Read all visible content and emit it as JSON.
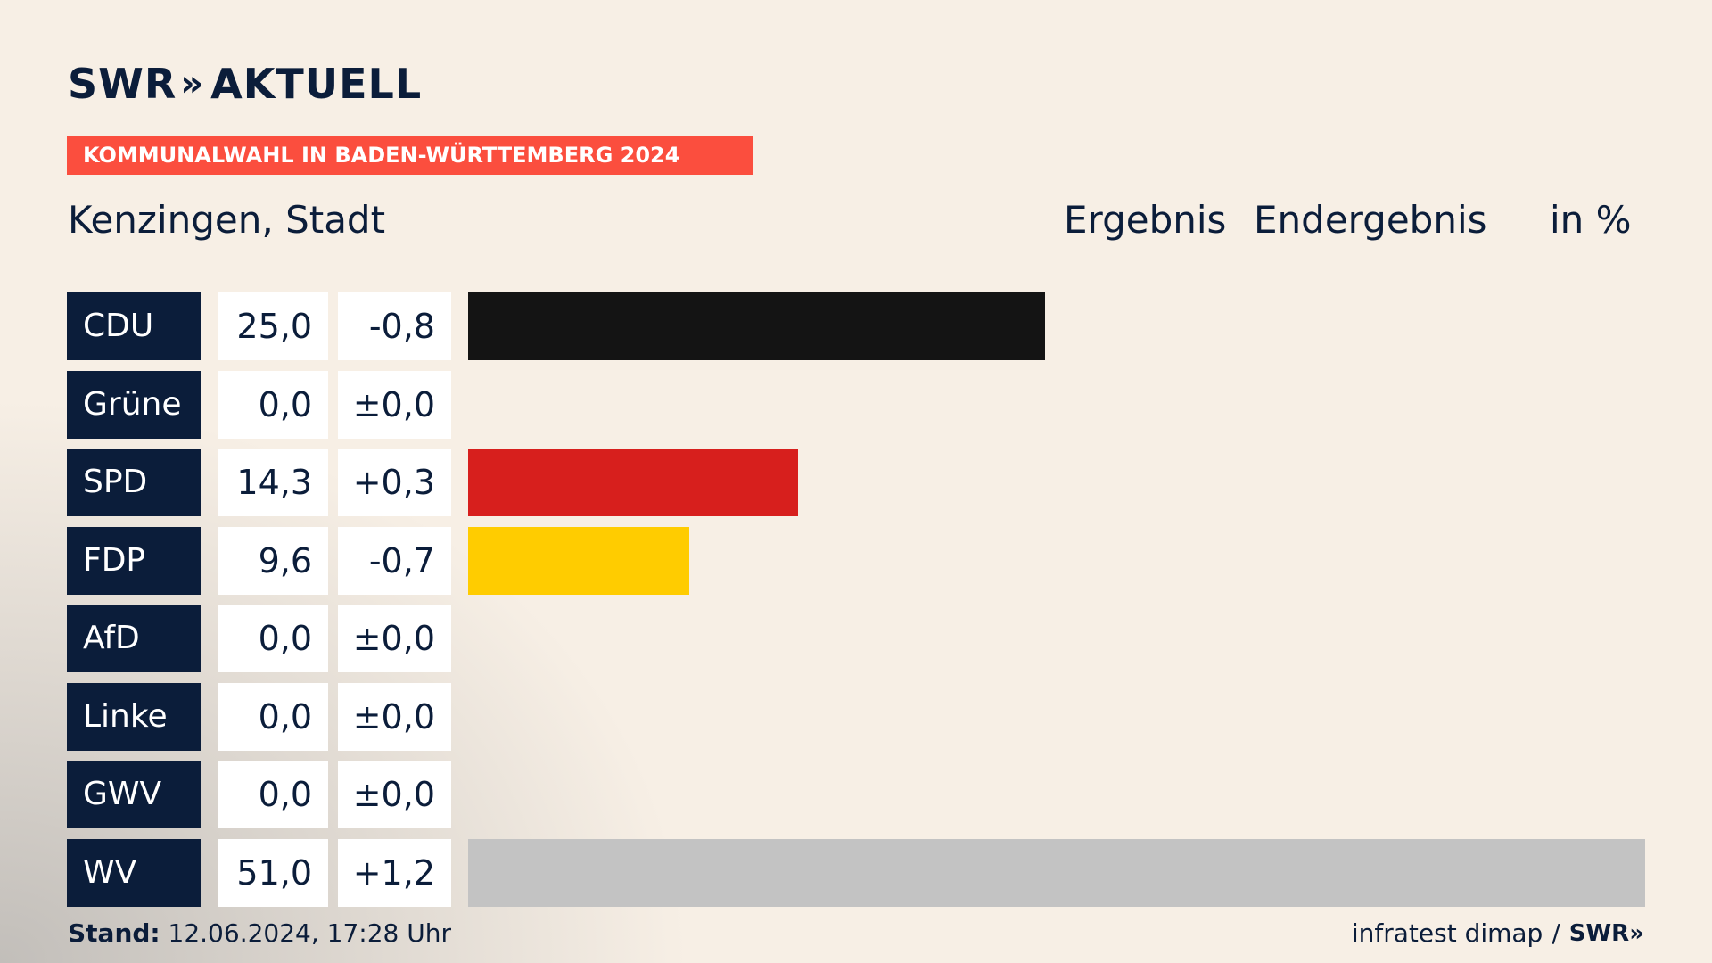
{
  "logo": {
    "text": "SWR",
    "chevron": "»",
    "suffix": "AKTUELL"
  },
  "banner": "KOMMUNALWAHL IN BADEN-WÜRTTEMBERG 2024",
  "region": "Kenzingen, Stadt",
  "headers": {
    "result": "Ergebnis",
    "final": "Endergebnis",
    "unit": "in %"
  },
  "chart_data": {
    "type": "bar",
    "orientation": "horizontal",
    "categories": [
      "CDU",
      "Grüne",
      "SPD",
      "FDP",
      "AfD",
      "Linke",
      "GWV",
      "WV"
    ],
    "values": [
      25.0,
      0.0,
      14.3,
      9.6,
      0.0,
      0.0,
      0.0,
      51.0
    ],
    "value_labels": [
      "25,0",
      "0,0",
      "14,3",
      "9,6",
      "0,0",
      "0,0",
      "0,0",
      "51,0"
    ],
    "diff_labels": [
      "-0,8",
      "±0,0",
      "+0,3",
      "-0,7",
      "±0,0",
      "±0,0",
      "±0,0",
      "+1,2"
    ],
    "colors": [
      "#141414",
      "#1fa12e",
      "#d71f1d",
      "#ffcc00",
      "#009ee0",
      "#be3075",
      "#c3c3c3",
      "#c3c3c3"
    ],
    "xlim": [
      0,
      51.0
    ]
  },
  "footer": {
    "stand_label": "Stand:",
    "stand_value": "12.06.2024, 17:28 Uhr",
    "source": "infratest dimap",
    "separator": "/",
    "brand": "SWR",
    "brand_chevron": "»"
  }
}
